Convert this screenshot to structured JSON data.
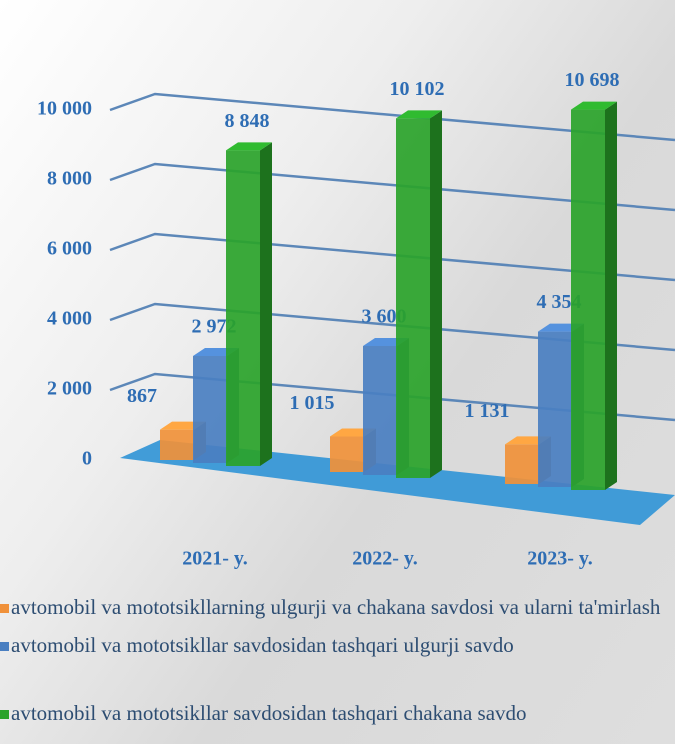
{
  "chart_data": {
    "type": "bar3d",
    "categories": [
      "2021- y.",
      "2022- y.",
      "2023- y."
    ],
    "series": [
      {
        "name": "avtomobil va mototsikllarning ulgurji va chakana savdosi va ularni ta'mirlash",
        "color": "#f0913a",
        "values": [
          867,
          1015,
          1131
        ],
        "value_labels": [
          "867",
          "1 015",
          "1 131"
        ]
      },
      {
        "name": "avtomobil va mototsikllar savdosidan tashqari ulgurji savdo",
        "color": "#4a7fc1",
        "values": [
          2972,
          3600,
          4354
        ],
        "value_labels": [
          "2 972",
          "3 600",
          "4 354"
        ]
      },
      {
        "name": "avtomobil va mototsikllar savdosidan tashqari chakana savdo",
        "color": "#2aa32a",
        "values": [
          8848,
          10102,
          10698
        ],
        "value_labels": [
          "8 848",
          "10 102",
          "10 698"
        ]
      }
    ],
    "ylim": [
      0,
      12000
    ],
    "yticks": [
      0,
      {
        "value": 2000,
        "label": "2 000"
      },
      {
        "value": 4000,
        "label": "4 000"
      },
      {
        "value": 6000,
        "label": "6 000"
      },
      {
        "value": 8000,
        "label": "8 000"
      },
      {
        "value": 10000,
        "label": "10 000"
      }
    ],
    "grid": true,
    "legend": "bottom"
  }
}
